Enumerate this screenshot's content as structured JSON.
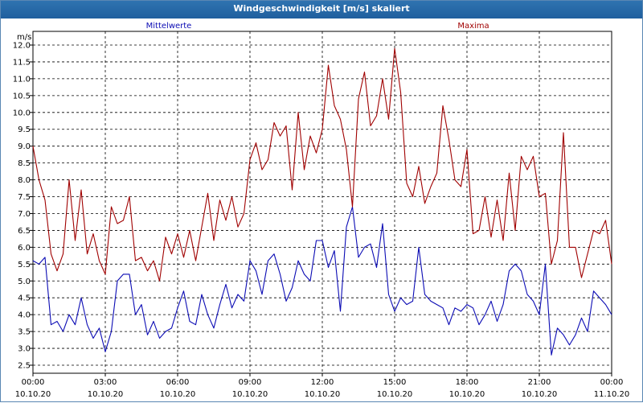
{
  "window": {
    "title": "Windgeschwindigkeit [m/s] skaliert"
  },
  "colors": {
    "mean": "#0b0bb4",
    "max": "#a00000",
    "grid": "#000000"
  },
  "chart_data": {
    "type": "line",
    "title": "Windgeschwindigkeit [m/s] skaliert",
    "ylabel": "m/s",
    "ylim": [
      2.5,
      12.0
    ],
    "yticks": [
      2.5,
      3.0,
      3.5,
      4.0,
      4.5,
      5.0,
      5.5,
      6.0,
      6.5,
      7.0,
      7.5,
      8.0,
      8.5,
      9.0,
      9.5,
      10.0,
      10.5,
      11.0,
      11.5,
      12.0
    ],
    "ytick_labels": [
      "2.5",
      "3.0",
      "3.5",
      "4.0",
      "4.5",
      "5.0",
      "5.5",
      "6.0",
      "6.5",
      "7.0",
      "7.5",
      "8.0",
      "8.5",
      "9.0",
      "9.5",
      "10.0",
      "10.5",
      "11.0",
      "11.5",
      "12.0"
    ],
    "xlim": [
      0,
      24
    ],
    "xticks": [
      {
        "t": 0,
        "time": "00:00",
        "date": "10.10.20"
      },
      {
        "t": 3,
        "time": "03:00",
        "date": "10.10.20"
      },
      {
        "t": 6,
        "time": "06:00",
        "date": "10.10.20"
      },
      {
        "t": 9,
        "time": "09:00",
        "date": "10.10.20"
      },
      {
        "t": 12,
        "time": "12:00",
        "date": "10.10.20"
      },
      {
        "t": 15,
        "time": "15:00",
        "date": "10.10.20"
      },
      {
        "t": 18,
        "time": "18:00",
        "date": "10.10.20"
      },
      {
        "t": 21,
        "time": "21:00",
        "date": "10.10.20"
      },
      {
        "t": 24,
        "time": "00:00",
        "date": "11.10.20"
      }
    ],
    "grid": true,
    "series": [
      {
        "name": "Mittelwerte",
        "x": [
          0,
          0.25,
          0.5,
          0.75,
          1,
          1.25,
          1.5,
          1.75,
          2,
          2.25,
          2.5,
          2.75,
          3,
          3.25,
          3.5,
          3.75,
          4,
          4.25,
          4.5,
          4.75,
          5,
          5.25,
          5.5,
          5.75,
          6,
          6.25,
          6.5,
          6.75,
          7,
          7.25,
          7.5,
          7.75,
          8,
          8.25,
          8.5,
          8.75,
          9,
          9.25,
          9.5,
          9.75,
          10,
          10.25,
          10.5,
          10.75,
          11,
          11.25,
          11.5,
          11.75,
          12,
          12.25,
          12.5,
          12.75,
          13,
          13.25,
          13.5,
          13.75,
          14,
          14.25,
          14.5,
          14.75,
          15,
          15.25,
          15.5,
          15.75,
          16,
          16.25,
          16.5,
          16.75,
          17,
          17.25,
          17.5,
          17.75,
          18,
          18.25,
          18.5,
          18.75,
          19,
          19.25,
          19.5,
          19.75,
          20,
          20.25,
          20.5,
          20.75,
          21,
          21.25,
          21.5,
          21.75,
          22,
          22.25,
          22.5,
          22.75,
          23,
          23.25,
          23.5,
          23.75,
          24
        ],
        "y": [
          5.6,
          5.5,
          5.7,
          3.7,
          3.8,
          3.5,
          4.0,
          3.7,
          4.5,
          3.7,
          3.3,
          3.6,
          2.9,
          3.5,
          5.0,
          5.2,
          5.2,
          4.0,
          4.3,
          3.4,
          3.8,
          3.3,
          3.5,
          3.6,
          4.2,
          4.7,
          3.8,
          3.7,
          4.6,
          4.0,
          3.6,
          4.3,
          4.9,
          4.2,
          4.6,
          4.4,
          5.6,
          5.3,
          4.6,
          5.6,
          5.8,
          5.2,
          4.4,
          4.8,
          5.6,
          5.2,
          5.0,
          6.2,
          6.2,
          5.4,
          5.9,
          4.1,
          6.6,
          7.2,
          5.7,
          6.0,
          6.1,
          5.4,
          6.7,
          4.6,
          4.1,
          4.5,
          4.3,
          4.4,
          6.0,
          4.6,
          4.4,
          4.3,
          4.2,
          3.7,
          4.2,
          4.1,
          4.3,
          4.2,
          3.7,
          4.0,
          4.4,
          3.8,
          4.3,
          5.3,
          5.5,
          5.3,
          4.6,
          4.4,
          4.0,
          5.5,
          2.8,
          3.6,
          3.4,
          3.1,
          3.4,
          3.9,
          3.5,
          4.7,
          4.5,
          4.3,
          4.0
        ]
      },
      {
        "name": "Maxima",
        "x": [
          0,
          0.25,
          0.5,
          0.75,
          1,
          1.25,
          1.5,
          1.75,
          2,
          2.25,
          2.5,
          2.75,
          3,
          3.25,
          3.5,
          3.75,
          4,
          4.25,
          4.5,
          4.75,
          5,
          5.25,
          5.5,
          5.75,
          6,
          6.25,
          6.5,
          6.75,
          7,
          7.25,
          7.5,
          7.75,
          8,
          8.25,
          8.5,
          8.75,
          9,
          9.25,
          9.5,
          9.75,
          10,
          10.25,
          10.5,
          10.75,
          11,
          11.25,
          11.5,
          11.75,
          12,
          12.25,
          12.5,
          12.75,
          13,
          13.25,
          13.5,
          13.75,
          14,
          14.25,
          14.5,
          14.75,
          15,
          15.25,
          15.5,
          15.75,
          16,
          16.25,
          16.5,
          16.75,
          17,
          17.25,
          17.5,
          17.75,
          18,
          18.25,
          18.5,
          18.75,
          19,
          19.25,
          19.5,
          19.75,
          20,
          20.25,
          20.5,
          20.75,
          21,
          21.25,
          21.5,
          21.75,
          22,
          22.25,
          22.5,
          22.75,
          23,
          23.25,
          23.5,
          23.75,
          24
        ],
        "y": [
          9.0,
          8.0,
          7.4,
          5.8,
          5.3,
          5.8,
          8.0,
          6.2,
          7.7,
          5.8,
          6.4,
          5.6,
          5.2,
          7.2,
          6.7,
          6.8,
          7.5,
          5.6,
          5.7,
          5.3,
          5.6,
          5.0,
          6.3,
          5.8,
          6.4,
          5.7,
          6.5,
          5.6,
          6.6,
          7.6,
          6.2,
          7.4,
          6.8,
          7.5,
          6.6,
          7.0,
          8.6,
          9.1,
          8.3,
          8.6,
          9.7,
          9.3,
          9.6,
          7.7,
          10.0,
          8.3,
          9.3,
          8.8,
          9.5,
          11.4,
          10.2,
          9.8,
          8.9,
          7.2,
          10.4,
          11.2,
          9.6,
          9.9,
          11.0,
          9.8,
          11.9,
          10.6,
          7.9,
          7.5,
          8.4,
          7.3,
          7.8,
          8.2,
          10.2,
          9.2,
          8.0,
          7.8,
          8.9,
          6.4,
          6.5,
          7.5,
          6.3,
          7.4,
          6.2,
          8.2,
          6.5,
          8.7,
          8.3,
          8.7,
          7.5,
          7.6,
          5.5,
          6.2,
          9.4,
          6.0,
          6.0,
          5.1,
          5.8,
          6.5,
          6.4,
          6.8,
          5.5
        ]
      }
    ]
  }
}
